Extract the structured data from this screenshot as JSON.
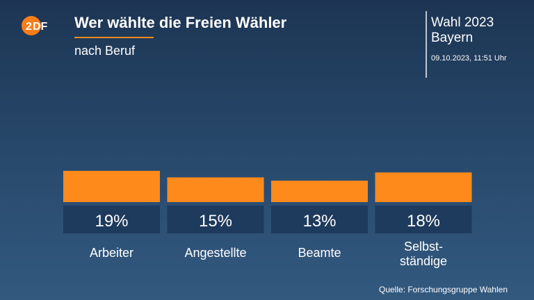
{
  "header": {
    "title": "Wer wählte die Freien Wähler",
    "subtitle": "nach Beruf",
    "election_line1": "Wahl 2023",
    "election_line2": "Bayern",
    "timestamp": "09.10.2023, 11:51 Uhr"
  },
  "colors": {
    "bar": "#ff8a1c",
    "label_box": "#1e3a5c",
    "accent": "#ff8a1c"
  },
  "chart_data": {
    "type": "bar",
    "categories": [
      "Arbeiter",
      "Angestellte",
      "Beamte",
      "Selbst-ständige"
    ],
    "category_lines": [
      [
        "Arbeiter"
      ],
      [
        "Angestellte"
      ],
      [
        "Beamte"
      ],
      [
        "Selbst-",
        "ständige"
      ]
    ],
    "values": [
      19,
      15,
      13,
      18
    ],
    "value_labels": [
      "19%",
      "15%",
      "13%",
      "18%"
    ],
    "unit": "%",
    "title": "Wer wählte die Freien Wähler",
    "subtitle": "nach Beruf",
    "grid": false,
    "legend": "none"
  },
  "footer": {
    "source": "Quelle: Forschungsgruppe Wahlen"
  }
}
